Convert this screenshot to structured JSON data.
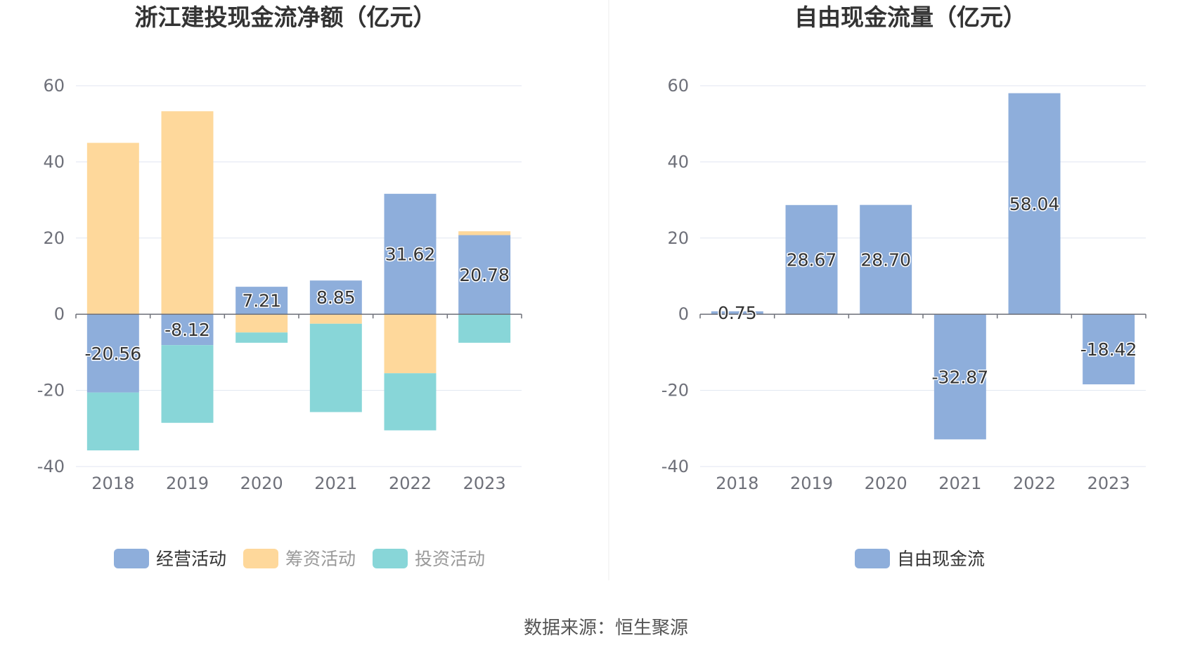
{
  "source_label": "数据来源：恒生聚源",
  "colors": {
    "operating": "#8eaedb",
    "financing": "#fed89b",
    "investing": "#88d6d8",
    "free_cash_flow": "#8eaedb"
  },
  "chart_data": [
    {
      "type": "bar",
      "stacked": true,
      "title": "浙江建投现金流净额（亿元）",
      "categories": [
        "2018",
        "2019",
        "2020",
        "2021",
        "2022",
        "2023"
      ],
      "ylim": [
        -40,
        60
      ],
      "yticks": [
        "60",
        "40",
        "20",
        "0",
        "-20",
        "-40"
      ],
      "grid": true,
      "legend_position": "bottom",
      "series": [
        {
          "name": "经营活动",
          "values": [
            -20.56,
            -8.12,
            7.21,
            8.85,
            31.62,
            20.78
          ],
          "labels": [
            "-20.56",
            "-8.12",
            "7.21",
            "8.85",
            "31.62",
            "20.78"
          ]
        },
        {
          "name": "筹资活动",
          "values": [
            45.0,
            53.3,
            -4.8,
            -2.5,
            -15.5,
            1.0
          ]
        },
        {
          "name": "投资活动",
          "values": [
            -15.2,
            -20.4,
            -2.7,
            -23.2,
            -15.0,
            -7.5
          ]
        }
      ]
    },
    {
      "type": "bar",
      "stacked": false,
      "title": "自由现金流量（亿元）",
      "categories": [
        "2018",
        "2019",
        "2020",
        "2021",
        "2022",
        "2023"
      ],
      "ylim": [
        -40,
        60
      ],
      "yticks": [
        "60",
        "40",
        "20",
        "0",
        "-20",
        "-40"
      ],
      "grid": true,
      "legend_position": "bottom",
      "series": [
        {
          "name": "自由现金流",
          "values": [
            0.75,
            28.67,
            28.7,
            -32.87,
            58.04,
            -18.42
          ],
          "labels": [
            "0.75",
            "28.67",
            "28.70",
            "-32.87",
            "58.04",
            "-18.42"
          ]
        }
      ]
    }
  ]
}
